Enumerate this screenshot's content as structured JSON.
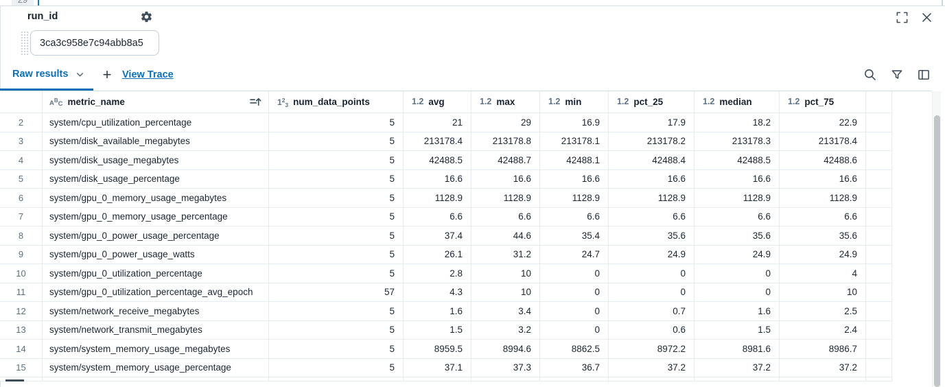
{
  "editor_above": {
    "visible_line_number": "29"
  },
  "panel": {
    "field_label": "run_id",
    "field_value": "3ca3c958e7c94abb8a5",
    "tab_bar": {
      "active_tab": "Raw results",
      "add_button": "+",
      "view_trace_link": "View Trace"
    },
    "icons": {
      "gear": "settings",
      "expand": "fullscreen",
      "close": "close",
      "search": "search",
      "filter": "filter",
      "columns": "column-panel",
      "chevron": "chevron-down",
      "sort": "sort-ascending"
    }
  },
  "colors": {
    "accent_blue": "#0e6fb4",
    "icon_slate": "#3f4e5a",
    "type_icon_slate": "#5d7284",
    "row_number": "#5a6f80"
  },
  "table": {
    "columns": [
      {
        "key": "metric_name",
        "label": "metric_name",
        "type": "string",
        "sort": "asc"
      },
      {
        "key": "num_data_points",
        "label": "num_data_points",
        "type": "integer"
      },
      {
        "key": "avg",
        "label": "avg",
        "type": "float"
      },
      {
        "key": "max",
        "label": "max",
        "type": "float"
      },
      {
        "key": "min",
        "label": "min",
        "type": "float"
      },
      {
        "key": "pct_25",
        "label": "pct_25",
        "type": "float"
      },
      {
        "key": "median",
        "label": "median",
        "type": "float"
      },
      {
        "key": "pct_75",
        "label": "pct_75",
        "type": "float"
      }
    ],
    "rows": [
      {
        "n": "2",
        "metric_name": "system/cpu_utilization_percentage",
        "values": [
          "5",
          "21",
          "29",
          "16.9",
          "17.9",
          "18.2",
          "22.9"
        ]
      },
      {
        "n": "3",
        "metric_name": "system/disk_available_megabytes",
        "values": [
          "5",
          "213178.4",
          "213178.8",
          "213178.1",
          "213178.2",
          "213178.3",
          "213178.4"
        ]
      },
      {
        "n": "4",
        "metric_name": "system/disk_usage_megabytes",
        "values": [
          "5",
          "42488.5",
          "42488.7",
          "42488.1",
          "42488.4",
          "42488.5",
          "42488.6"
        ]
      },
      {
        "n": "5",
        "metric_name": "system/disk_usage_percentage",
        "values": [
          "5",
          "16.6",
          "16.6",
          "16.6",
          "16.6",
          "16.6",
          "16.6"
        ]
      },
      {
        "n": "6",
        "metric_name": "system/gpu_0_memory_usage_megabytes",
        "values": [
          "5",
          "1128.9",
          "1128.9",
          "1128.9",
          "1128.9",
          "1128.9",
          "1128.9"
        ]
      },
      {
        "n": "7",
        "metric_name": "system/gpu_0_memory_usage_percentage",
        "values": [
          "5",
          "6.6",
          "6.6",
          "6.6",
          "6.6",
          "6.6",
          "6.6"
        ]
      },
      {
        "n": "8",
        "metric_name": "system/gpu_0_power_usage_percentage",
        "values": [
          "5",
          "37.4",
          "44.6",
          "35.4",
          "35.6",
          "35.6",
          "35.6"
        ]
      },
      {
        "n": "9",
        "metric_name": "system/gpu_0_power_usage_watts",
        "values": [
          "5",
          "26.1",
          "31.2",
          "24.7",
          "24.9",
          "24.9",
          "24.9"
        ]
      },
      {
        "n": "10",
        "metric_name": "system/gpu_0_utilization_percentage",
        "values": [
          "5",
          "2.8",
          "10",
          "0",
          "0",
          "0",
          "4"
        ]
      },
      {
        "n": "11",
        "metric_name": "system/gpu_0_utilization_percentage_avg_epoch",
        "values": [
          "57",
          "4.3",
          "10",
          "0",
          "0",
          "0",
          "10"
        ]
      },
      {
        "n": "12",
        "metric_name": "system/network_receive_megabytes",
        "values": [
          "5",
          "1.6",
          "3.4",
          "0",
          "0.7",
          "1.6",
          "2.5"
        ]
      },
      {
        "n": "13",
        "metric_name": "system/network_transmit_megabytes",
        "values": [
          "5",
          "1.5",
          "3.2",
          "0",
          "0.6",
          "1.5",
          "2.4"
        ]
      },
      {
        "n": "14",
        "metric_name": "system/system_memory_usage_megabytes",
        "values": [
          "5",
          "8959.5",
          "8994.6",
          "8862.5",
          "8972.2",
          "8981.6",
          "8986.7"
        ]
      },
      {
        "n": "15",
        "metric_name": "system/system_memory_usage_percentage",
        "values": [
          "5",
          "37.1",
          "37.3",
          "36.7",
          "37.2",
          "37.2",
          "37.2"
        ]
      }
    ]
  }
}
